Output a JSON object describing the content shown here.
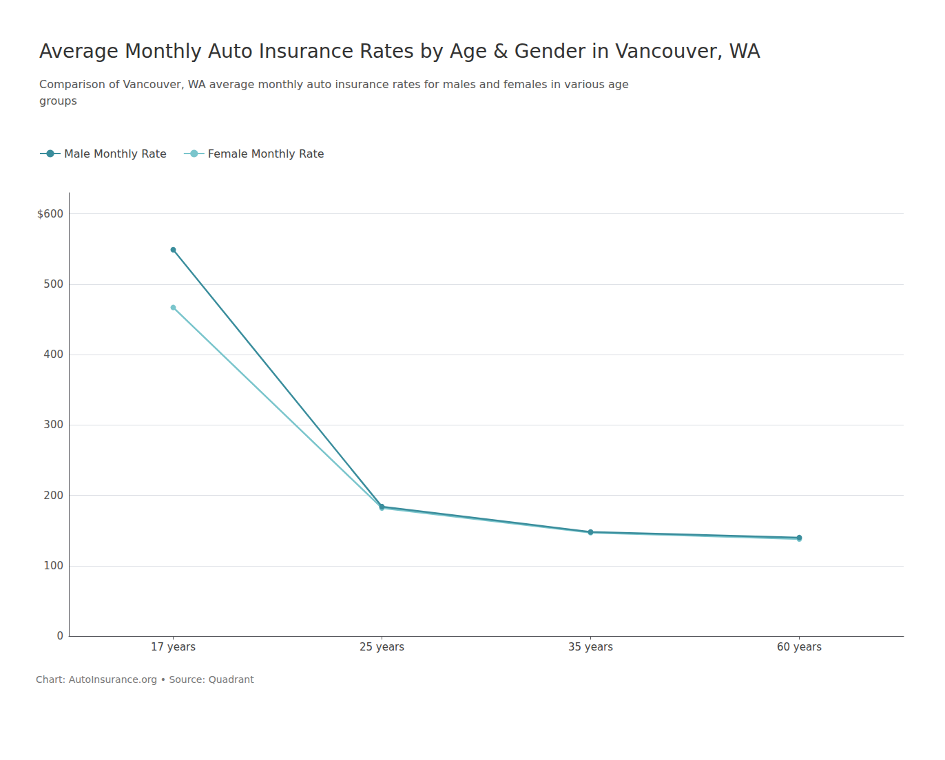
{
  "chart_data": {
    "type": "line",
    "title": "Average Monthly Auto Insurance Rates by Age & Gender in Vancouver, WA",
    "subtitle": "Comparison of Vancouver, WA average monthly auto insurance rates for males and females in various age\ngroups",
    "caption": "Chart: AutoInsurance.org • Source: Quadrant",
    "categories": [
      "17 years",
      "25 years",
      "35 years",
      "60 years"
    ],
    "series": [
      {
        "name": "Male Monthly Rate",
        "color": "#3a8d9c",
        "values": [
          549,
          184,
          148,
          140
        ]
      },
      {
        "name": "Female Monthly Rate",
        "color": "#7ac5cc",
        "values": [
          467,
          182,
          147,
          138
        ]
      }
    ],
    "ylim": [
      0,
      630
    ],
    "yticks": [
      0,
      100,
      200,
      300,
      400,
      500,
      {
        "value": 600,
        "label": "$600"
      }
    ],
    "grid": true,
    "legend": "top left",
    "marker": "circle"
  }
}
